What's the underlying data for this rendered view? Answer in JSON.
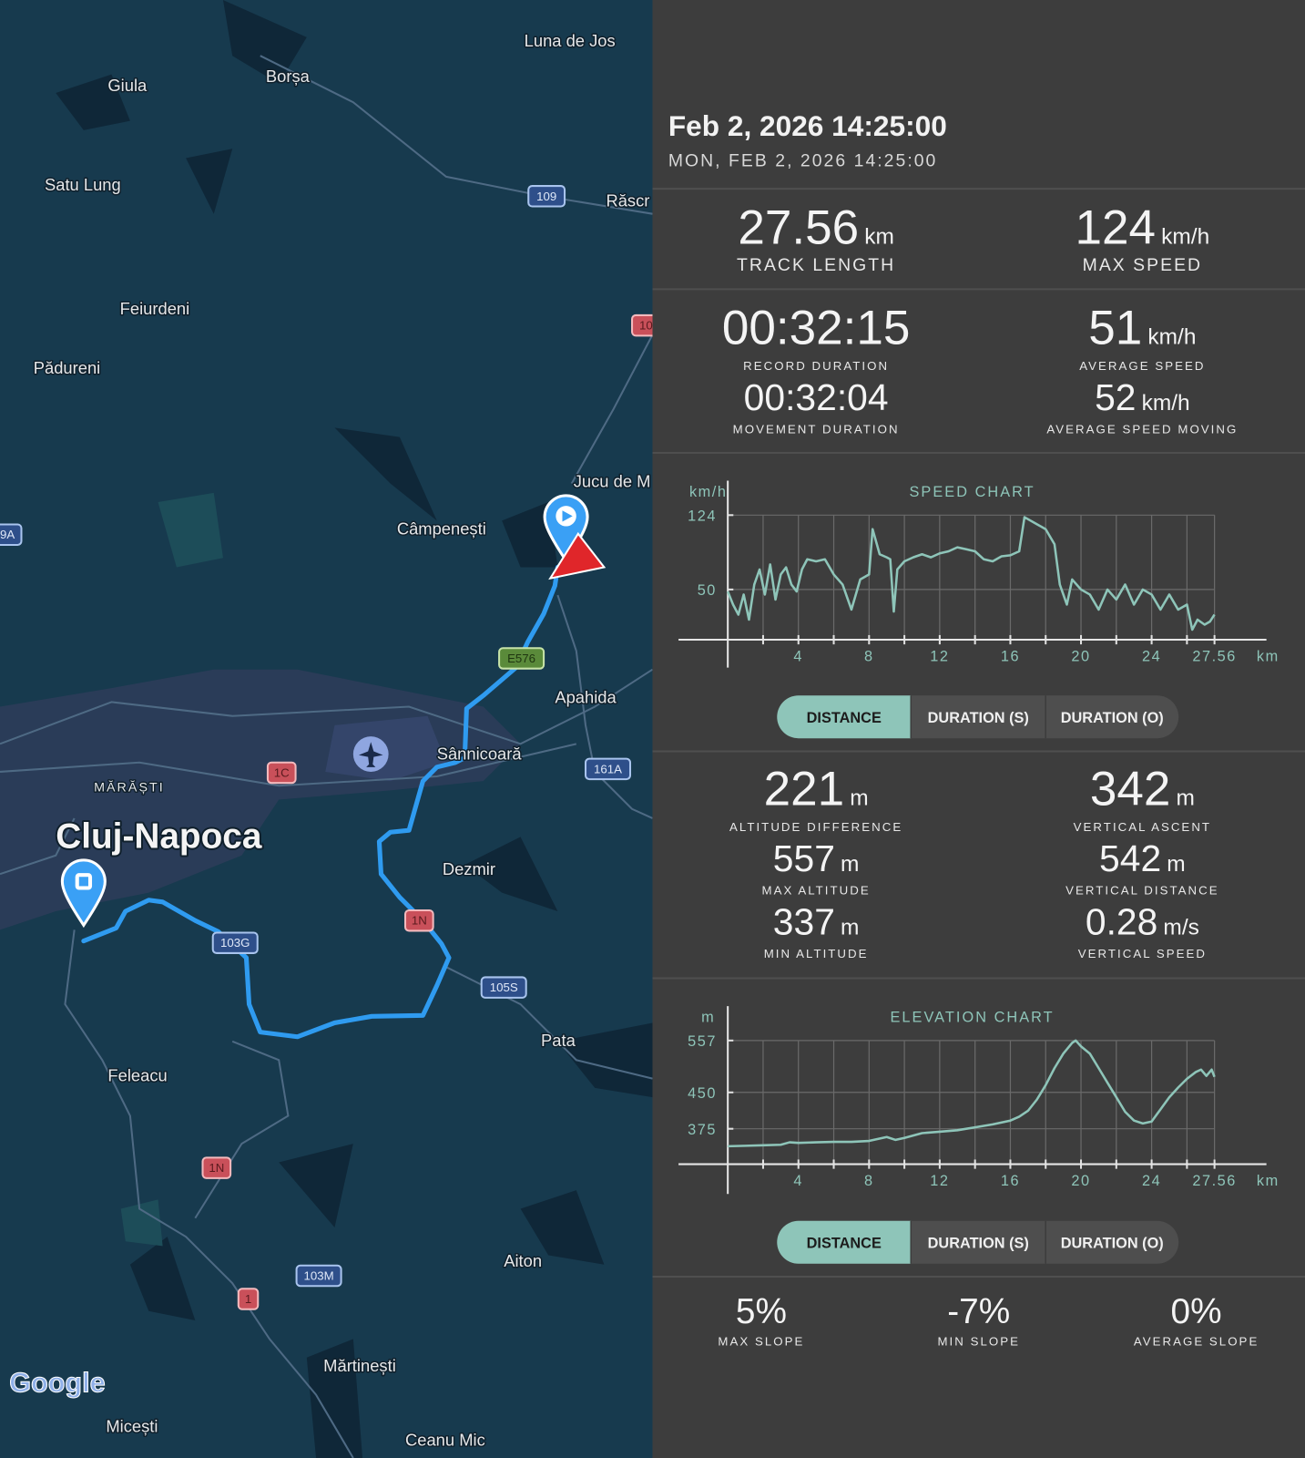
{
  "map": {
    "places": [
      "Luna de Jos",
      "Borșa",
      "Giula",
      "Satu Lung",
      "Răscr",
      "Feiurdeni",
      "Pădureni",
      "Jucu de M",
      "Câmpenești",
      "Apahida",
      "Sânnicoară",
      "MĂRĂȘTI",
      "Cluj-Napoca",
      "Dezmir",
      "Pata",
      "Feleacu",
      "Aiton",
      "Mărtinești",
      "Micești",
      "Ceanu Mic"
    ],
    "roads": [
      "109",
      "10",
      "9A",
      "E576",
      "1C",
      "161A",
      "1N",
      "103G",
      "105S",
      "1N",
      "103M",
      "1"
    ],
    "logo": "Google"
  },
  "header": {
    "title": "Feb 2, 2026 14:25:00",
    "subtitle": "MON, FEB 2, 2026 14:25:00"
  },
  "stats": [
    {
      "value": "27.56",
      "unit": "km",
      "label": "TRACK LENGTH"
    },
    {
      "value": "124",
      "unit": "km/h",
      "label": "MAX SPEED"
    },
    {
      "value": "00:32:15",
      "label": "RECORD DURATION"
    },
    {
      "value": "51",
      "unit": "km/h",
      "label": "AVERAGE SPEED"
    },
    {
      "value": "00:32:04",
      "label": "MOVEMENT DURATION"
    },
    {
      "value": "52",
      "unit": "km/h",
      "label": "AVERAGE SPEED MOVING"
    },
    {
      "value": "221",
      "unit": "m",
      "label": "ALTITUDE DIFFERENCE"
    },
    {
      "value": "342",
      "unit": "m",
      "label": "VERTICAL ASCENT"
    },
    {
      "value": "557",
      "unit": "m",
      "label": "MAX ALTITUDE"
    },
    {
      "value": "542",
      "unit": "m",
      "label": "VERTICAL DISTANCE"
    },
    {
      "value": "337",
      "unit": "m",
      "label": "MIN ALTITUDE"
    },
    {
      "value": "0.28",
      "unit": "m/s",
      "label": "VERTICAL SPEED"
    },
    {
      "value": "5%",
      "label": "MAX SLOPE"
    },
    {
      "value": "-7%",
      "label": "MIN SLOPE"
    },
    {
      "value": "0%",
      "label": "AVERAGE SLOPE"
    }
  ],
  "chart_data": [
    {
      "type": "line",
      "title": "SPEED CHART",
      "y_unit": "km/h",
      "x_unit": "km",
      "color": "#8ec5b9",
      "x": [
        0,
        0.3,
        0.6,
        0.9,
        1.2,
        1.5,
        1.8,
        2.1,
        2.4,
        2.7,
        3.0,
        3.3,
        3.6,
        3.9,
        4.2,
        4.5,
        5.0,
        5.5,
        6.0,
        6.5,
        7.0,
        7.5,
        8.0,
        8.2,
        8.6,
        9.0,
        9.2,
        9.4,
        9.6,
        10,
        10.5,
        11,
        11.5,
        12,
        12.5,
        13,
        13.5,
        14,
        14.5,
        15,
        15.5,
        16,
        16.5,
        16.8,
        17.5,
        18,
        18.5,
        18.8,
        19.2,
        19.5,
        20,
        20.5,
        21,
        21.5,
        22,
        22.5,
        23,
        23.5,
        24,
        24.5,
        25,
        25.5,
        26,
        26.3,
        26.6,
        27,
        27.3,
        27.56
      ],
      "values": [
        48,
        35,
        25,
        45,
        20,
        55,
        70,
        45,
        75,
        40,
        65,
        72,
        55,
        48,
        70,
        80,
        78,
        80,
        65,
        55,
        30,
        60,
        65,
        110,
        85,
        82,
        80,
        28,
        70,
        78,
        82,
        85,
        82,
        86,
        88,
        92,
        90,
        88,
        80,
        78,
        83,
        84,
        88,
        122,
        115,
        110,
        95,
        55,
        35,
        60,
        50,
        45,
        30,
        50,
        40,
        55,
        35,
        50,
        45,
        30,
        45,
        30,
        35,
        10,
        20,
        15,
        18,
        25
      ],
      "xlim": [
        0,
        30.5
      ],
      "ylim": [
        0,
        124
      ],
      "xticks": [
        4,
        8,
        12,
        16,
        20,
        24,
        27.56
      ],
      "xminor": [
        2,
        6,
        10,
        14,
        18,
        22,
        26
      ],
      "yticks": [
        50,
        124
      ],
      "tabs": [
        "DISTANCE",
        "DURATION (S)",
        "DURATION (O)"
      ],
      "active_tab": 0
    },
    {
      "type": "line",
      "title": "ELEVATION CHART",
      "y_unit": "m",
      "x_unit": "km",
      "color": "#8ec5b9",
      "x": [
        0,
        1,
        2,
        3,
        3.5,
        4,
        5,
        6,
        7,
        8,
        9,
        9.5,
        10,
        11,
        12,
        13,
        14,
        15,
        16,
        16.5,
        17,
        17.5,
        18,
        18.5,
        19,
        19.5,
        19.7,
        20,
        20.5,
        21,
        21.5,
        22,
        22.5,
        23,
        23.5,
        24,
        24.5,
        25,
        25.5,
        26,
        26.5,
        26.8,
        27.1,
        27.4,
        27.56
      ],
      "values": [
        339,
        340,
        341,
        342,
        347,
        346,
        347,
        348,
        348,
        350,
        358,
        352,
        356,
        366,
        369,
        372,
        378,
        384,
        392,
        400,
        412,
        435,
        465,
        500,
        530,
        552,
        557,
        545,
        530,
        500,
        470,
        440,
        410,
        392,
        386,
        390,
        415,
        440,
        460,
        478,
        492,
        497,
        484,
        497,
        482
      ],
      "xlim": [
        0,
        30.5
      ],
      "ylim": [
        302,
        557
      ],
      "xticks": [
        4,
        8,
        12,
        16,
        20,
        24,
        27.56
      ],
      "xminor": [
        2,
        6,
        10,
        14,
        18,
        22,
        26
      ],
      "yticks": [
        375,
        450,
        557
      ],
      "tabs": [
        "DISTANCE",
        "DURATION (S)",
        "DURATION (O)"
      ],
      "active_tab": 0
    }
  ]
}
